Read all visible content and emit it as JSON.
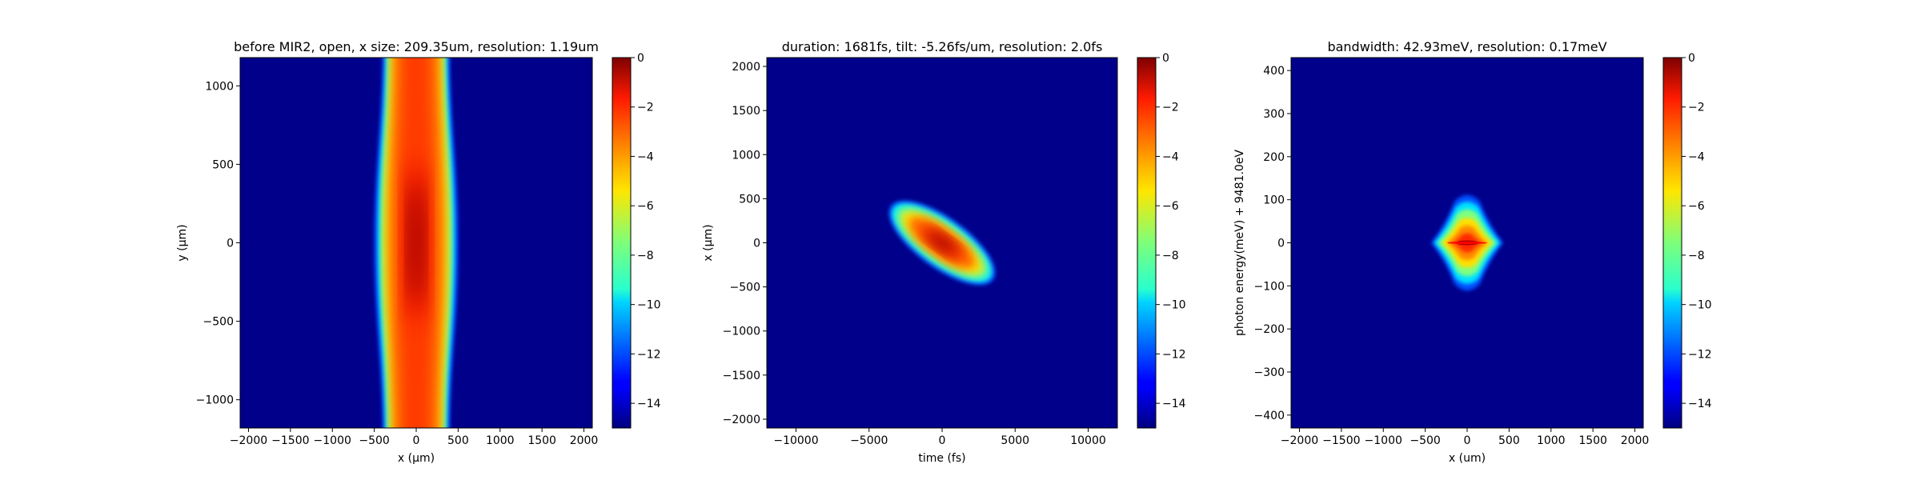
{
  "chart_data": [
    {
      "type": "heatmap",
      "title": "before MIR2, open, x size: 209.35um, resolution: 1.19um",
      "xlabel": "x (μm)",
      "ylabel": "y (μm)",
      "xlim": [
        -2100,
        2100
      ],
      "ylim": [
        -1180,
        1180
      ],
      "xticks": [
        -2000,
        -1500,
        -1000,
        -500,
        0,
        500,
        1000,
        1500,
        2000
      ],
      "yticks": [
        -1000,
        -500,
        0,
        500,
        1000
      ],
      "xticklabels": [
        "−2000",
        "−1500",
        "−1000",
        "−500",
        "0",
        "500",
        "1000",
        "1500",
        "2000"
      ],
      "yticklabels": [
        "−1000",
        "−500",
        "0",
        "500",
        "1000"
      ],
      "colorscale": "jet",
      "background_color": "#00008b",
      "vmin": -15,
      "vmax": 0,
      "colorbar_ticks": [
        0,
        -2,
        -4,
        -6,
        -8,
        -10,
        -12,
        -14
      ],
      "colorbar_ticklabels": [
        "0",
        "−2",
        "−4",
        "−6",
        "−8",
        "−10",
        "−12",
        "−14"
      ],
      "feature": {
        "shape": "vertical band",
        "center_x": 0,
        "center_y": 0,
        "half_width_x_at_center": 500,
        "half_width_x_at_edges": 400,
        "peak_value": 0,
        "core_half_width_x": 80,
        "core_half_height_y": 420
      }
    },
    {
      "type": "heatmap",
      "title": "duration: 1681fs, tilt: -5.26fs/um, resolution: 2.0fs",
      "xlabel": "time (fs)",
      "ylabel": "x (μm)",
      "xlim": [
        -12000,
        12000
      ],
      "ylim": [
        -2100,
        2100
      ],
      "xticks": [
        -10000,
        -5000,
        0,
        5000,
        10000
      ],
      "yticks": [
        -2000,
        -1500,
        -1000,
        -500,
        0,
        500,
        1000,
        1500,
        2000
      ],
      "xticklabels": [
        "−10000",
        "−5000",
        "0",
        "5000",
        "10000"
      ],
      "yticklabels": [
        "−2000",
        "−1500",
        "−1000",
        "−500",
        "0",
        "500",
        "1000",
        "1500",
        "2000"
      ],
      "colorscale": "jet",
      "background_color": "#00008b",
      "vmin": -15,
      "vmax": 0,
      "colorbar_ticks": [
        0,
        -2,
        -4,
        -6,
        -8,
        -10,
        -12,
        -14
      ],
      "colorbar_ticklabels": [
        "0",
        "−2",
        "−4",
        "−6",
        "−8",
        "−10",
        "−12",
        "−14"
      ],
      "feature": {
        "shape": "tilted ellipse",
        "center_x": 0,
        "center_y": 0,
        "extent_x": [
          -3500,
          3500
        ],
        "extent_y": [
          -420,
          420
        ],
        "tilt_slope_um_per_fs": -0.11,
        "peak_value": 0
      }
    },
    {
      "type": "heatmap",
      "title": "bandwidth: 42.93meV, resolution: 0.17meV",
      "xlabel": "x (um)",
      "ylabel": "photon energy(meV) + 9481.0eV",
      "xlim": [
        -2100,
        2100
      ],
      "ylim": [
        -430,
        430
      ],
      "xticks": [
        -2000,
        -1500,
        -1000,
        -500,
        0,
        500,
        1000,
        1500,
        2000
      ],
      "yticks": [
        -400,
        -300,
        -200,
        -100,
        0,
        100,
        200,
        300,
        400
      ],
      "xticklabels": [
        "−2000",
        "−1500",
        "−1000",
        "−500",
        "0",
        "500",
        "1000",
        "1500",
        "2000"
      ],
      "yticklabels": [
        "−400",
        "−300",
        "−200",
        "−100",
        "0",
        "100",
        "200",
        "300",
        "400"
      ],
      "colorscale": "jet",
      "background_color": "#00008b",
      "vmin": -15,
      "vmax": 0,
      "colorbar_ticks": [
        0,
        -2,
        -4,
        -6,
        -8,
        -10,
        -12,
        -14
      ],
      "colorbar_ticklabels": [
        "0",
        "−2",
        "−4",
        "−6",
        "−8",
        "−10",
        "−12",
        "−14"
      ],
      "feature": {
        "shape": "bowtie",
        "center_x": 0,
        "center_y": 0,
        "extent_x": [
          -430,
          430
        ],
        "extent_y": [
          -120,
          120
        ],
        "peak_value": 0
      }
    }
  ]
}
